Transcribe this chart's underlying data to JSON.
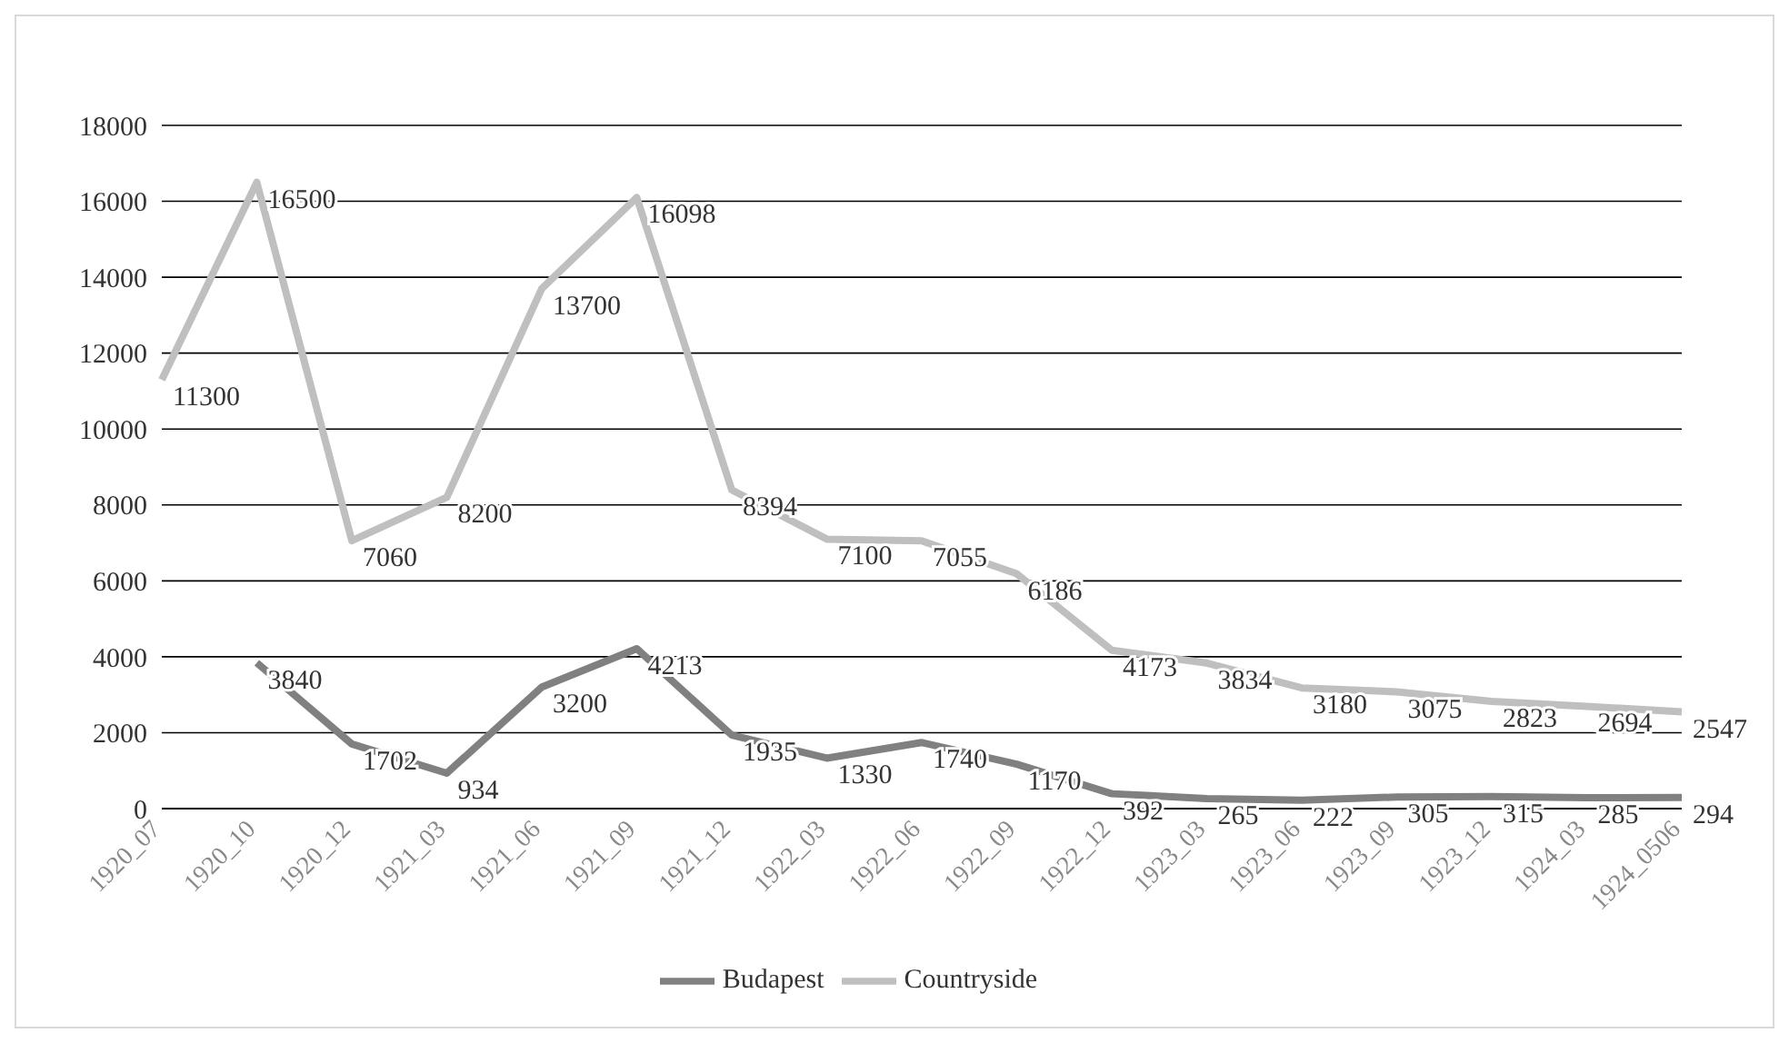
{
  "chart_data": {
    "type": "line",
    "categories": [
      "1920_07",
      "1920_10",
      "1920_12",
      "1921_03",
      "1921_06",
      "1921_09",
      "1921_12",
      "1922_03",
      "1922_06",
      "1922_09",
      "1922_12",
      "1923_03",
      "1923_06",
      "1923_09",
      "1923_12",
      "1924_03",
      "1924_0506"
    ],
    "series": [
      {
        "name": "Budapest",
        "color": "#808080",
        "values": [
          null,
          3840,
          1702,
          934,
          3200,
          4213,
          1935,
          1330,
          1740,
          1170,
          392,
          265,
          222,
          305,
          315,
          285,
          294
        ]
      },
      {
        "name": "Countryside",
        "color": "#bfbfbf",
        "values": [
          11300,
          16500,
          7060,
          8200,
          13700,
          16098,
          8394,
          7100,
          7055,
          6186,
          4173,
          3834,
          3180,
          3075,
          2823,
          2694,
          2547
        ]
      }
    ],
    "ylim": [
      0,
      18000
    ],
    "yticks": [
      0,
      2000,
      4000,
      6000,
      8000,
      10000,
      12000,
      14000,
      16000,
      18000
    ],
    "grid": "y",
    "legend": "bottom",
    "marker": "none",
    "line_style": "solid",
    "data_labels": true
  }
}
